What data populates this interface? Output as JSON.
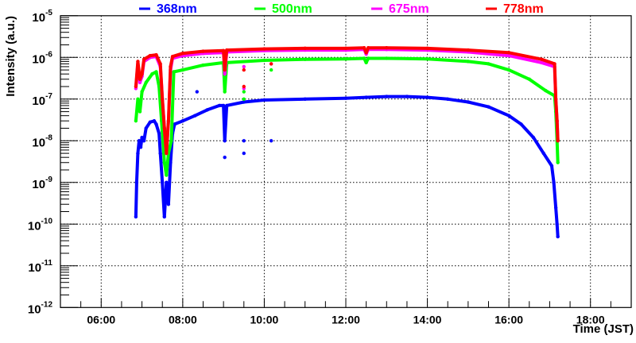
{
  "chart_data": {
    "type": "scatter",
    "title": "",
    "xlabel": "Time (JST)",
    "ylabel": "Intensity (a.u.)",
    "xlim": [
      5,
      19
    ],
    "ylim": [
      1e-12,
      1e-05
    ],
    "yscale": "log",
    "grid": true,
    "legend_position": "top",
    "x_tick_labels": [
      "06:00",
      "08:00",
      "10:00",
      "12:00",
      "14:00",
      "16:00",
      "18:00"
    ],
    "x_tick_values": [
      6,
      8,
      10,
      12,
      14,
      16,
      18
    ],
    "y_tick_labels": [
      {
        "base": "10",
        "exp": "-5"
      },
      {
        "base": "10",
        "exp": "-6"
      },
      {
        "base": "10",
        "exp": "-7"
      },
      {
        "base": "10",
        "exp": "-8"
      },
      {
        "base": "10",
        "exp": "-9"
      },
      {
        "base": "10",
        "exp": "-10"
      },
      {
        "base": "10",
        "exp": "-11"
      },
      {
        "base": "10",
        "exp": "-12"
      }
    ],
    "y_tick_values": [
      1e-05,
      1e-06,
      1e-07,
      1e-08,
      1e-09,
      1e-10,
      1e-11,
      1e-12
    ],
    "series": [
      {
        "name": "368nm",
        "color": "#0000ff",
        "points": [
          [
            6.85,
            1.5e-10
          ],
          [
            6.87,
            1e-09
          ],
          [
            6.9,
            5e-09
          ],
          [
            6.93,
            1e-08
          ],
          [
            6.97,
            7e-09
          ],
          [
            7.0,
            1.2e-08
          ],
          [
            7.05,
            1e-08
          ],
          [
            7.1,
            2e-08
          ],
          [
            7.2,
            2.8e-08
          ],
          [
            7.3,
            3e-08
          ],
          [
            7.35,
            2.5e-08
          ],
          [
            7.42,
            1.5e-08
          ],
          [
            7.45,
            5e-09
          ],
          [
            7.5,
            1e-09
          ],
          [
            7.55,
            1.5e-10
          ],
          [
            7.6,
            1e-09
          ],
          [
            7.65,
            3e-10
          ],
          [
            7.7,
            3e-09
          ],
          [
            7.75,
            1.5e-08
          ],
          [
            7.8,
            2.5e-08
          ],
          [
            8.0,
            3e-08
          ],
          [
            8.3,
            4e-08
          ],
          [
            8.6,
            5.5e-08
          ],
          [
            8.9,
            7e-08
          ],
          [
            9.0,
            7e-08
          ],
          [
            9.03,
            1e-08
          ],
          [
            9.08,
            7e-08
          ],
          [
            9.5,
            8.5e-08
          ],
          [
            10,
            9.5e-08
          ],
          [
            11,
            1e-07
          ],
          [
            12,
            1.05e-07
          ],
          [
            12.5,
            1.1e-07
          ],
          [
            13,
            1.15e-07
          ],
          [
            13.5,
            1.15e-07
          ],
          [
            14,
            1.1e-07
          ],
          [
            14.5,
            1e-07
          ],
          [
            15,
            8.5e-08
          ],
          [
            15.5,
            6.5e-08
          ],
          [
            16,
            4e-08
          ],
          [
            16.3,
            2.5e-08
          ],
          [
            16.6,
            1.2e-08
          ],
          [
            16.85,
            5e-09
          ],
          [
            17.05,
            2.5e-09
          ],
          [
            17.1,
            1e-09
          ],
          [
            17.15,
            2.5e-10
          ],
          [
            17.18,
            1e-10
          ],
          [
            17.2,
            5e-11
          ]
        ],
        "scatter": [
          [
            8.35,
            1.5e-07
          ],
          [
            9.5,
            1e-08
          ],
          [
            9.5,
            5e-09
          ],
          [
            10.17,
            1e-08
          ],
          [
            9.03,
            4e-09
          ]
        ]
      },
      {
        "name": "500nm",
        "color": "#00ff00",
        "points": [
          [
            6.85,
            3e-08
          ],
          [
            6.9,
            1e-07
          ],
          [
            6.95,
            5e-08
          ],
          [
            7.0,
            1.5e-07
          ],
          [
            7.1,
            2.5e-07
          ],
          [
            7.25,
            4e-07
          ],
          [
            7.35,
            4.5e-07
          ],
          [
            7.42,
            2e-07
          ],
          [
            7.48,
            3e-08
          ],
          [
            7.55,
            3e-09
          ],
          [
            7.6,
            1.5e-09
          ],
          [
            7.65,
            5e-09
          ],
          [
            7.72,
            1e-08
          ],
          [
            7.78,
            4.5e-07
          ],
          [
            8.0,
            5e-07
          ],
          [
            8.5,
            6.5e-07
          ],
          [
            9.0,
            7.5e-07
          ],
          [
            9.03,
            1.5e-07
          ],
          [
            9.08,
            7.5e-07
          ],
          [
            10,
            8.5e-07
          ],
          [
            11,
            9e-07
          ],
          [
            12,
            9.2e-07
          ],
          [
            12.45,
            9.5e-07
          ],
          [
            12.5,
            7.5e-07
          ],
          [
            12.55,
            9.5e-07
          ],
          [
            13,
            9.5e-07
          ],
          [
            14,
            9.2e-07
          ],
          [
            15,
            8e-07
          ],
          [
            15.5,
            7e-07
          ],
          [
            16,
            5e-07
          ],
          [
            16.5,
            3e-07
          ],
          [
            16.9,
            1.6e-07
          ],
          [
            17.12,
            1.2e-07
          ],
          [
            17.15,
            5e-08
          ],
          [
            17.18,
            1e-08
          ],
          [
            17.2,
            3e-09
          ]
        ],
        "scatter": [
          [
            9.5,
            1.5e-07
          ],
          [
            9.5,
            1e-07
          ],
          [
            10.17,
            5e-07
          ]
        ]
      },
      {
        "name": "675nm",
        "color": "#ff00ff",
        "points": [
          [
            6.85,
            1.8e-07
          ],
          [
            6.9,
            7e-07
          ],
          [
            6.95,
            2.5e-07
          ],
          [
            7.0,
            3.5e-07
          ],
          [
            7.05,
            8e-07
          ],
          [
            7.2,
            1e-06
          ],
          [
            7.35,
            1.05e-06
          ],
          [
            7.45,
            6e-07
          ],
          [
            7.5,
            1e-07
          ],
          [
            7.55,
            2e-08
          ],
          [
            7.6,
            5e-09
          ],
          [
            7.65,
            3e-08
          ],
          [
            7.7,
            5e-07
          ],
          [
            7.75,
            9.5e-07
          ],
          [
            8.0,
            1.1e-06
          ],
          [
            8.5,
            1.25e-06
          ],
          [
            9.0,
            1.3e-06
          ],
          [
            9.03,
            4e-07
          ],
          [
            9.08,
            1.35e-06
          ],
          [
            10,
            1.45e-06
          ],
          [
            11,
            1.5e-06
          ],
          [
            12,
            1.5e-06
          ],
          [
            12.45,
            1.55e-06
          ],
          [
            12.5,
            1.2e-06
          ],
          [
            12.55,
            1.55e-06
          ],
          [
            13,
            1.55e-06
          ],
          [
            14,
            1.5e-06
          ],
          [
            15,
            1.35e-06
          ],
          [
            16,
            1.1e-06
          ],
          [
            16.8,
            7.5e-07
          ],
          [
            17.12,
            6e-07
          ],
          [
            17.15,
            1e-07
          ],
          [
            17.18,
            3e-08
          ],
          [
            17.2,
            1e-08
          ]
        ],
        "scatter": [
          [
            9.5,
            6e-07
          ],
          [
            9.5,
            1.8e-07
          ],
          [
            10.17,
            7e-07
          ]
        ]
      },
      {
        "name": "778nm",
        "color": "#ff0000",
        "points": [
          [
            6.85,
            2e-07
          ],
          [
            6.9,
            8e-07
          ],
          [
            6.95,
            3e-07
          ],
          [
            7.0,
            4e-07
          ],
          [
            7.05,
            9e-07
          ],
          [
            7.2,
            1.1e-06
          ],
          [
            7.35,
            1.15e-06
          ],
          [
            7.45,
            7e-07
          ],
          [
            7.5,
            1e-07
          ],
          [
            7.55,
            2e-08
          ],
          [
            7.6,
            5e-09
          ],
          [
            7.65,
            3e-08
          ],
          [
            7.7,
            6e-07
          ],
          [
            7.75,
            1.05e-06
          ],
          [
            8.0,
            1.25e-06
          ],
          [
            8.5,
            1.4e-06
          ],
          [
            9.0,
            1.45e-06
          ],
          [
            9.03,
            5e-07
          ],
          [
            9.08,
            1.5e-06
          ],
          [
            10,
            1.6e-06
          ],
          [
            11,
            1.65e-06
          ],
          [
            12,
            1.65e-06
          ],
          [
            12.45,
            1.7e-06
          ],
          [
            12.5,
            1.3e-06
          ],
          [
            12.55,
            1.7e-06
          ],
          [
            13,
            1.7e-06
          ],
          [
            14,
            1.65e-06
          ],
          [
            15,
            1.5e-06
          ],
          [
            16,
            1.3e-06
          ],
          [
            16.8,
            9e-07
          ],
          [
            17.12,
            7e-07
          ],
          [
            17.15,
            1e-07
          ],
          [
            17.18,
            3e-08
          ],
          [
            17.2,
            1e-08
          ]
        ],
        "scatter": [
          [
            9.5,
            5e-07
          ],
          [
            9.5,
            2e-07
          ],
          [
            10.17,
            7e-07
          ]
        ]
      }
    ]
  }
}
